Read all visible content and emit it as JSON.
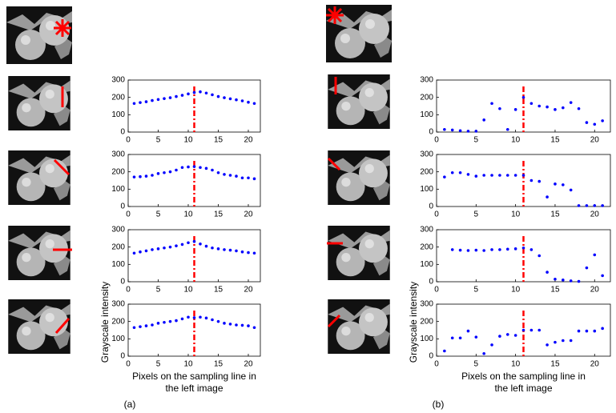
{
  "chart_data": [
    {
      "type": "scatter",
      "x": [
        1,
        2,
        3,
        4,
        5,
        6,
        7,
        8,
        9,
        10,
        11,
        12,
        13,
        14,
        15,
        16,
        17,
        18,
        19,
        20,
        21
      ],
      "values": [
        165,
        170,
        175,
        182,
        188,
        193,
        198,
        205,
        212,
        220,
        228,
        232,
        225,
        215,
        205,
        198,
        192,
        186,
        180,
        172,
        165
      ],
      "color": "#0000ff",
      "reference_x": 11,
      "reference_color": "#ff0000",
      "xlim": [
        0,
        22
      ],
      "ylim": [
        0,
        300
      ],
      "xticks": [
        0,
        5,
        10,
        15,
        20
      ],
      "yticks": [
        0,
        100,
        200,
        300
      ]
    },
    {
      "type": "scatter",
      "x": [
        1,
        2,
        3,
        4,
        5,
        6,
        7,
        8,
        9,
        10,
        11,
        12,
        13,
        14,
        15,
        16,
        17,
        18,
        19,
        20,
        21
      ],
      "values": [
        170,
        172,
        175,
        180,
        190,
        195,
        200,
        210,
        225,
        228,
        230,
        225,
        220,
        210,
        195,
        185,
        180,
        175,
        165,
        165,
        160
      ],
      "color": "#0000ff",
      "reference_x": 11,
      "reference_color": "#ff0000",
      "xlim": [
        0,
        22
      ],
      "ylim": [
        0,
        300
      ],
      "xticks": [
        0,
        5,
        10,
        15,
        20
      ],
      "yticks": [
        0,
        100,
        200,
        300
      ]
    },
    {
      "type": "scatter",
      "x": [
        1,
        2,
        3,
        4,
        5,
        6,
        7,
        8,
        9,
        10,
        11,
        12,
        13,
        14,
        15,
        16,
        17,
        18,
        19,
        20,
        21
      ],
      "values": [
        165,
        172,
        178,
        185,
        190,
        195,
        200,
        207,
        215,
        225,
        232,
        218,
        205,
        195,
        190,
        185,
        182,
        178,
        172,
        168,
        165
      ],
      "color": "#0000ff",
      "reference_x": 11,
      "reference_color": "#ff0000",
      "xlim": [
        0,
        22
      ],
      "ylim": [
        0,
        300
      ],
      "xticks": [
        0,
        5,
        10,
        15,
        20
      ],
      "yticks": [
        0,
        100,
        200,
        300
      ]
    },
    {
      "type": "scatter",
      "x": [
        1,
        2,
        3,
        4,
        5,
        6,
        7,
        8,
        9,
        10,
        11,
        12,
        13,
        14,
        15,
        16,
        17,
        18,
        19,
        20,
        21
      ],
      "values": [
        165,
        170,
        175,
        180,
        190,
        195,
        200,
        205,
        215,
        225,
        222,
        225,
        220,
        210,
        200,
        190,
        185,
        180,
        178,
        175,
        165
      ],
      "color": "#0000ff",
      "reference_x": 11,
      "reference_color": "#ff0000",
      "xlim": [
        0,
        22
      ],
      "ylim": [
        0,
        300
      ],
      "xticks": [
        0,
        5,
        10,
        15,
        20
      ],
      "yticks": [
        0,
        100,
        200,
        300
      ],
      "ylabel": "Grayscale intensity",
      "xlabel": [
        "Pixels on the sampling line in",
        "the left image"
      ],
      "caption": "(a)"
    },
    {
      "type": "scatter",
      "x": [
        1,
        2,
        3,
        4,
        5,
        6,
        7,
        8,
        9,
        10,
        11,
        12,
        13,
        14,
        15,
        16,
        17,
        18,
        19,
        20,
        21
      ],
      "values": [
        15,
        12,
        8,
        5,
        5,
        70,
        165,
        135,
        15,
        130,
        200,
        165,
        150,
        145,
        130,
        140,
        170,
        135,
        55,
        45,
        65
      ],
      "color": "#0000ff",
      "reference_x": 11,
      "reference_color": "#ff0000",
      "xlim": [
        0,
        22
      ],
      "ylim": [
        0,
        300
      ],
      "xticks": [
        0,
        5,
        10,
        15,
        20
      ],
      "yticks": [
        0,
        100,
        200,
        300
      ]
    },
    {
      "type": "scatter",
      "x": [
        1,
        2,
        3,
        4,
        5,
        6,
        7,
        8,
        9,
        10,
        11,
        12,
        13,
        14,
        15,
        16,
        17,
        18,
        19,
        20,
        21
      ],
      "values": [
        170,
        195,
        195,
        185,
        175,
        180,
        180,
        180,
        180,
        180,
        180,
        150,
        145,
        55,
        130,
        125,
        95,
        5,
        5,
        5,
        5
      ],
      "color": "#0000ff",
      "reference_x": 11,
      "reference_color": "#ff0000",
      "xlim": [
        0,
        22
      ],
      "ylim": [
        0,
        300
      ],
      "xticks": [
        0,
        5,
        10,
        15,
        20
      ],
      "yticks": [
        0,
        100,
        200,
        300
      ]
    },
    {
      "type": "scatter",
      "x": [
        1,
        2,
        3,
        4,
        5,
        6,
        7,
        8,
        9,
        10,
        11,
        12,
        13,
        14,
        15,
        16,
        17,
        18,
        19,
        20,
        21
      ],
      "values": [
        null,
        185,
        182,
        180,
        182,
        180,
        185,
        185,
        188,
        190,
        195,
        185,
        150,
        55,
        15,
        10,
        5,
        2,
        80,
        155,
        35
      ],
      "color": "#0000ff",
      "reference_x": 11,
      "reference_color": "#ff0000",
      "xlim": [
        0,
        22
      ],
      "ylim": [
        0,
        300
      ],
      "xticks": [
        0,
        5,
        10,
        15,
        20
      ],
      "yticks": [
        0,
        100,
        200,
        300
      ]
    },
    {
      "type": "scatter",
      "x": [
        1,
        2,
        3,
        4,
        5,
        6,
        7,
        8,
        9,
        10,
        11,
        12,
        13,
        14,
        15,
        16,
        17,
        18,
        19,
        20,
        21
      ],
      "values": [
        30,
        105,
        105,
        145,
        110,
        15,
        65,
        115,
        125,
        120,
        150,
        150,
        150,
        65,
        80,
        90,
        90,
        145,
        145,
        145,
        160
      ],
      "color": "#0000ff",
      "reference_x": 11,
      "reference_color": "#ff0000",
      "xlim": [
        0,
        22
      ],
      "ylim": [
        0,
        300
      ],
      "xticks": [
        0,
        5,
        10,
        15,
        20
      ],
      "yticks": [
        0,
        100,
        200,
        300
      ],
      "ylabel": "Grayscale intensity",
      "xlabel": [
        "Pixels on the sampling line in",
        "the left image"
      ],
      "caption": "(b)"
    }
  ]
}
